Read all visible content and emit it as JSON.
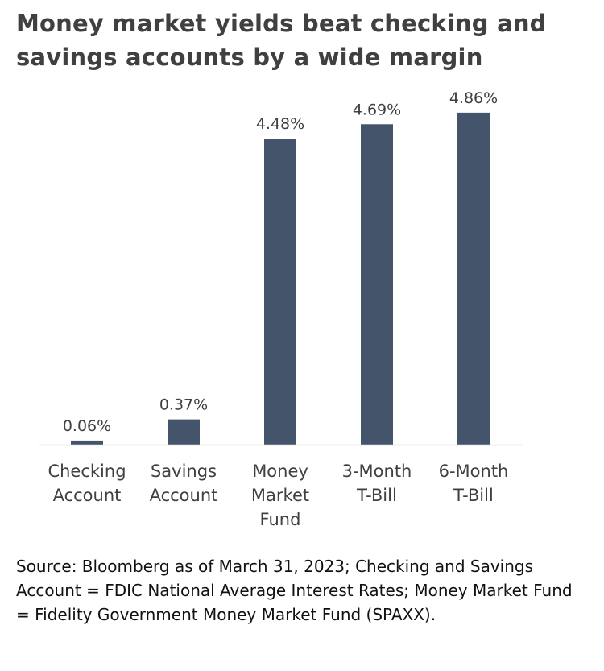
{
  "title": "Money market yields beat checking and savings accounts by a wide margin",
  "source": "Source: Bloomberg as of March 31, 2023; Checking and Savings Account = FDIC National Average Interest Rates; Money Market Fund = Fidelity Government Money Market Fund (SPAXX).",
  "colors": {
    "bar": "#44546a",
    "axis": "#d9d9d9",
    "text": "#404040"
  },
  "chart_data": {
    "type": "bar",
    "title": "Money market yields beat checking and savings accounts by a wide margin",
    "categories": [
      [
        "Checking",
        "Account"
      ],
      [
        "Savings",
        "Account"
      ],
      [
        "Money",
        "Market",
        "Fund"
      ],
      [
        "3-Month",
        "T-Bill"
      ],
      [
        "6-Month",
        "T-Bill"
      ]
    ],
    "values": [
      0.06,
      0.37,
      4.48,
      4.69,
      4.86
    ],
    "data_labels": [
      "0.06%",
      "0.37%",
      "4.48%",
      "4.69%",
      "4.86%"
    ],
    "ylim": [
      0,
      5
    ],
    "xlabel": "",
    "ylabel": "",
    "grid": false,
    "legend": "none"
  }
}
